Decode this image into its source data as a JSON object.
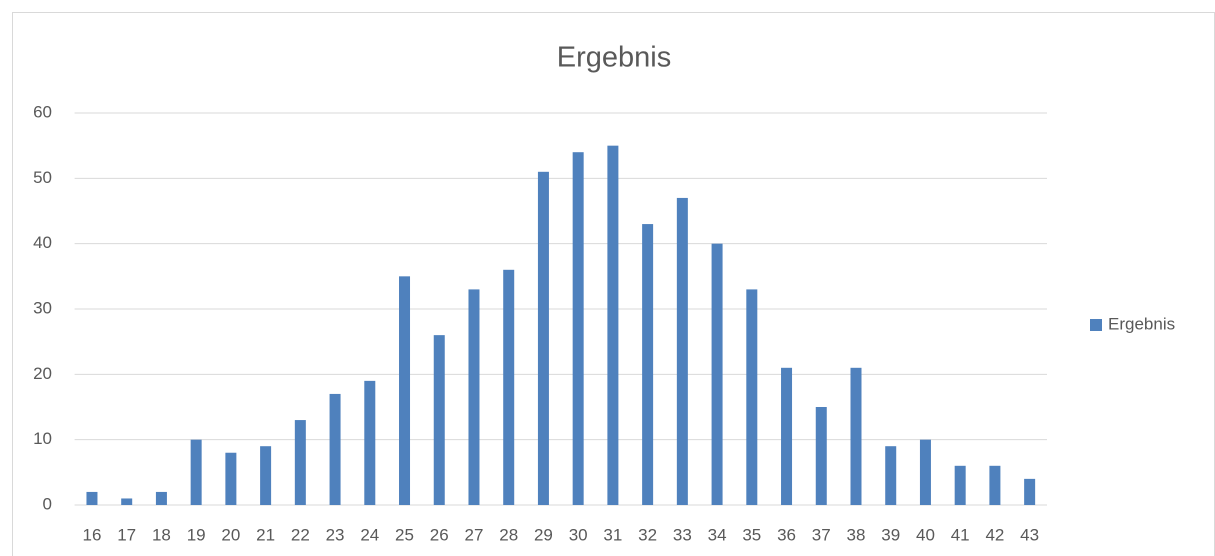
{
  "chart_data": {
    "type": "bar",
    "title": "Ergebnis",
    "categories": [
      "16",
      "17",
      "18",
      "19",
      "20",
      "21",
      "22",
      "23",
      "24",
      "25",
      "26",
      "27",
      "28",
      "29",
      "30",
      "31",
      "32",
      "33",
      "34",
      "35",
      "36",
      "37",
      "38",
      "39",
      "40",
      "41",
      "42",
      "43"
    ],
    "series": [
      {
        "name": "Ergebnis",
        "color": "#4f81bd",
        "values": [
          2,
          1,
          2,
          10,
          8,
          9,
          13,
          17,
          19,
          35,
          26,
          33,
          36,
          51,
          54,
          55,
          43,
          47,
          40,
          33,
          21,
          15,
          21,
          9,
          10,
          6,
          6,
          4
        ]
      }
    ],
    "ylim": [
      0,
      60
    ],
    "yticks": [
      0,
      10,
      20,
      30,
      40,
      50,
      60
    ],
    "grid": true,
    "legend": "right"
  }
}
